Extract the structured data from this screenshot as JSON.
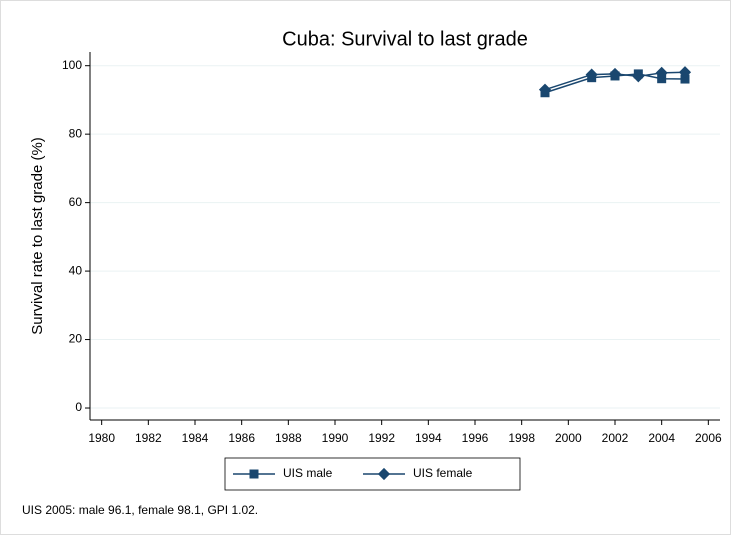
{
  "chart_data": {
    "type": "line",
    "title": "Cuba: Survival to last grade",
    "y_label": "Survival rate to last grade (%)",
    "note": "UIS 2005: male 96.1, female 98.1, GPI 1.02.",
    "xlim": [
      1979.5,
      2006.5
    ],
    "xticks": [
      1980,
      1982,
      1984,
      1986,
      1988,
      1990,
      1992,
      1994,
      1996,
      1998,
      2000,
      2002,
      2004,
      2006
    ],
    "ylim": [
      -3.5,
      104
    ],
    "yticks": [
      0,
      20,
      40,
      60,
      80,
      100
    ],
    "grid": true,
    "series": [
      {
        "name": "UIS male",
        "color": "#1a476f",
        "marker": "square",
        "x": [
          1999,
          2001,
          2002,
          2003,
          2004,
          2005
        ],
        "values": [
          92.1,
          96.5,
          97.0,
          97.6,
          96.2,
          96.1
        ]
      },
      {
        "name": "UIS female",
        "color": "#1a476f",
        "marker": "diamond",
        "x": [
          1999,
          2001,
          2002,
          2003,
          2004,
          2005
        ],
        "values": [
          93.0,
          97.4,
          97.6,
          96.9,
          97.9,
          98.1
        ]
      }
    ]
  }
}
